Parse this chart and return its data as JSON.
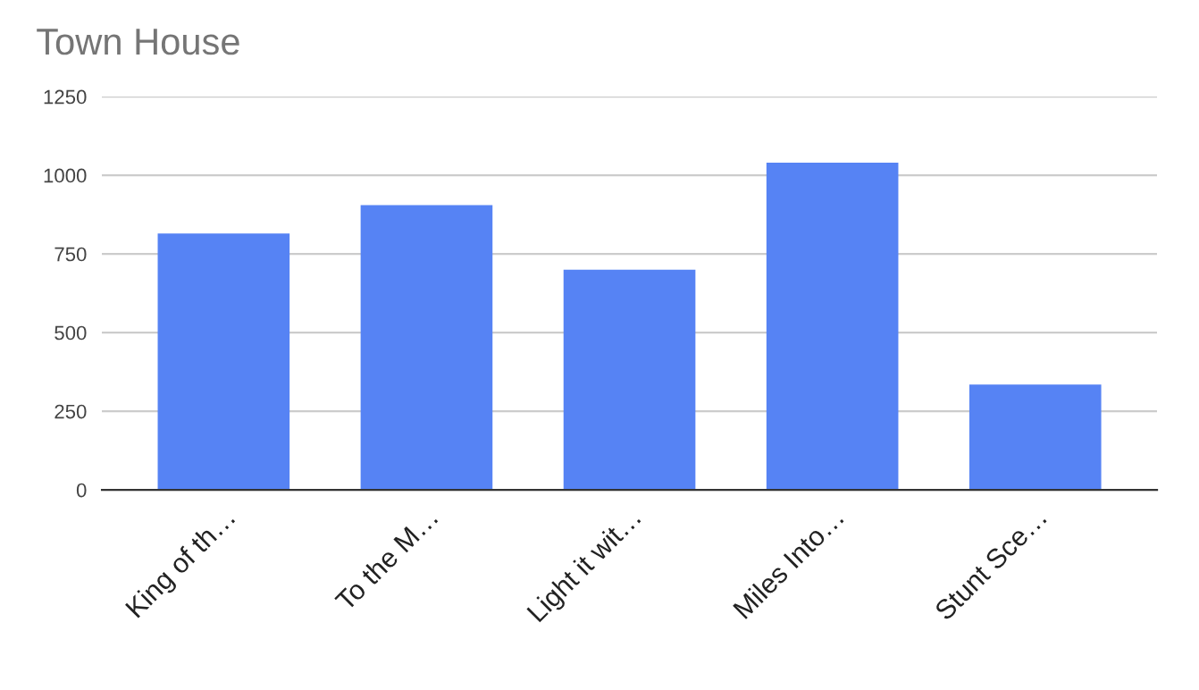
{
  "chart_data": {
    "type": "bar",
    "title": "Town House",
    "categories": [
      "King of th…",
      "To the M…",
      "Light it wit…",
      "Miles Into…",
      "Stunt Sce…"
    ],
    "values": [
      815,
      905,
      700,
      1040,
      335
    ],
    "color": "#5683f4",
    "ylim": [
      0,
      1250
    ],
    "yticks": [
      0,
      250,
      500,
      750,
      1000,
      1250
    ],
    "grid": "y",
    "legend": false
  }
}
